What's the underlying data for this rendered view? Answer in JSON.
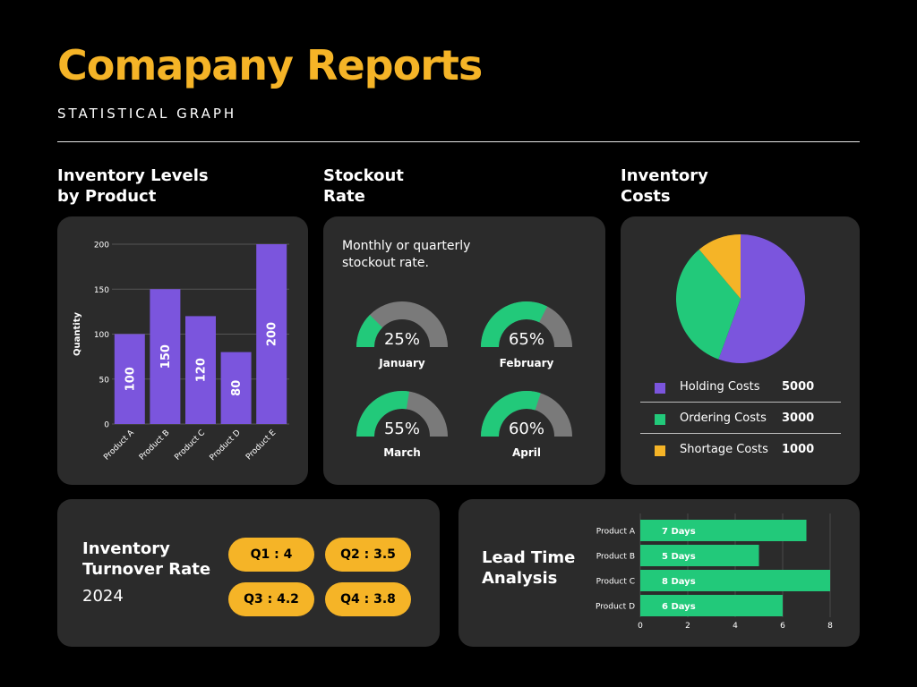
{
  "header": {
    "title": "Comapany Reports",
    "subtitle": "STATISTICAL GRAPH"
  },
  "sections": {
    "inventory_levels": "Inventory Levels\nby Product",
    "stockout": "Stockout\nRate",
    "inventory_costs": "Inventory\nCosts"
  },
  "colors": {
    "accent": "#f5b427",
    "purple": "#7b55dd",
    "green": "#22c97a",
    "gray": "#7a7a7a",
    "card": "#2b2b2b"
  },
  "stockout_desc": "Monthly or quarterly stockout rate.",
  "turnover": {
    "title": "Inventory\nTurnover Rate",
    "year": "2024",
    "quarters": [
      "Q1 : 4",
      "Q2 : 3.5",
      "Q3 : 4.2",
      "Q4 : 3.8"
    ]
  },
  "lead_time_title": "Lead Time\nAnalysis",
  "chart_data": [
    {
      "type": "bar",
      "categories": [
        "Product A",
        "Product B",
        "Product C",
        "Product D",
        "Product E"
      ],
      "values": [
        100,
        150,
        120,
        80,
        200
      ],
      "ylabel": "Quantity",
      "ylim": [
        0,
        200
      ],
      "yticks": [
        0,
        50,
        100,
        150,
        200
      ],
      "grid": true
    },
    {
      "type": "gauge",
      "series": [
        {
          "name": "January",
          "value": 25,
          "label": "25%"
        },
        {
          "name": "February",
          "value": 65,
          "label": "65%"
        },
        {
          "name": "March",
          "value": 55,
          "label": "55%"
        },
        {
          "name": "April",
          "value": 60,
          "label": "60%"
        }
      ]
    },
    {
      "type": "pie",
      "categories": [
        "Holding Costs",
        "Ordering Costs",
        "Shortage Costs"
      ],
      "values": [
        5000,
        3000,
        1000
      ],
      "colors": [
        "#7b55dd",
        "#22c97a",
        "#f5b427"
      ]
    },
    {
      "type": "bar",
      "orientation": "horizontal",
      "categories": [
        "Product A",
        "Product B",
        "Product C",
        "Product D"
      ],
      "values": [
        7,
        5,
        8,
        6
      ],
      "data_labels": [
        "7 Days",
        "5 Days",
        "8 Days",
        "6 Days"
      ],
      "xlim": [
        0,
        8
      ],
      "xticks": [
        0,
        2,
        4,
        6,
        8
      ]
    }
  ]
}
